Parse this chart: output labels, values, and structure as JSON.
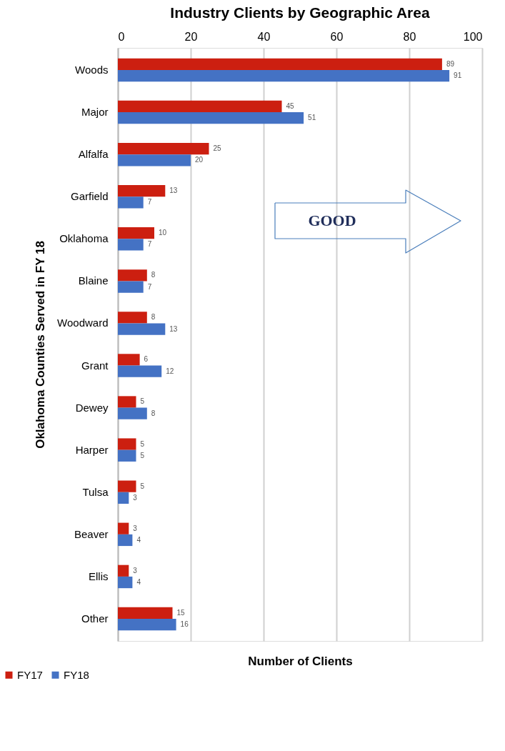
{
  "chart_data": {
    "type": "bar",
    "orientation": "horizontal",
    "title": "Industry Clients by Geographic Area",
    "xlabel": "Number of Clients",
    "ylabel": "Oklahoma Counties Served in FY 18",
    "categories": [
      "Woods",
      "Major",
      "Alfalfa",
      "Garfield",
      "Oklahoma",
      "Blaine",
      "Woodward",
      "Grant",
      "Dewey",
      "Harper",
      "Tulsa",
      "Beaver",
      "Ellis",
      "Other"
    ],
    "series": [
      {
        "name": "FY17",
        "color": "#cc1f10",
        "values": [
          89,
          45,
          25,
          13,
          10,
          8,
          8,
          6,
          5,
          5,
          5,
          3,
          3,
          15
        ]
      },
      {
        "name": "FY18",
        "color": "#4472c4",
        "values": [
          91,
          51,
          20,
          7,
          7,
          7,
          13,
          12,
          8,
          5,
          3,
          4,
          4,
          16
        ]
      }
    ],
    "xlim": [
      0,
      100
    ],
    "xticks": [
      0,
      20,
      40,
      60,
      80,
      100
    ],
    "grid": "x",
    "legend": "bottom left",
    "data_labels": true,
    "annotations": [
      "GOOD"
    ]
  }
}
